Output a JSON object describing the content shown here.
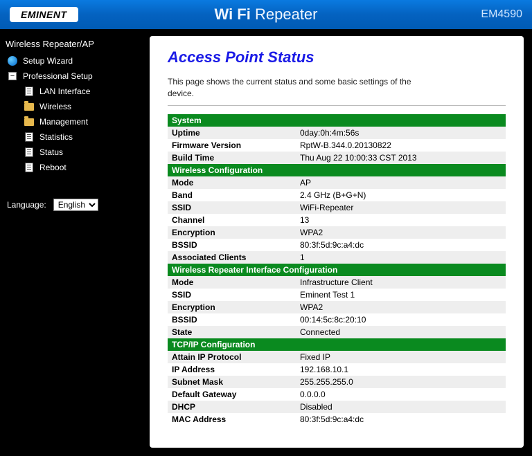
{
  "header": {
    "logo_text": "EMINENT",
    "title_strong": "Wi Fi",
    "title_light": "Repeater",
    "model": "EM4590"
  },
  "sidebar": {
    "heading": "Wireless Repeater/AP",
    "setup_wizard": "Setup Wizard",
    "pro_setup": "Professional Setup",
    "items": [
      {
        "label": "LAN Interface",
        "icon": "doc"
      },
      {
        "label": "Wireless",
        "icon": "folder"
      },
      {
        "label": "Management",
        "icon": "folder"
      },
      {
        "label": "Statistics",
        "icon": "doc"
      },
      {
        "label": "Status",
        "icon": "doc"
      },
      {
        "label": "Reboot",
        "icon": "doc"
      }
    ],
    "language_label": "Language:",
    "language_value": "English"
  },
  "page": {
    "title": "Access Point Status",
    "description": "This page shows the current status and some basic settings of the device."
  },
  "colors": {
    "section_header_bg": "#0a8a1f",
    "alt_row_bg": "#eeeeee",
    "title_color": "#1a1ae6"
  },
  "sections": [
    {
      "title": "System",
      "rows": [
        {
          "k": "Uptime",
          "v": "0day:0h:4m:56s"
        },
        {
          "k": "Firmware Version",
          "v": "RptW-B.344.0.20130822"
        },
        {
          "k": "Build Time",
          "v": "Thu Aug 22 10:00:33 CST 2013"
        }
      ]
    },
    {
      "title": "Wireless Configuration",
      "rows": [
        {
          "k": "Mode",
          "v": "AP"
        },
        {
          "k": "Band",
          "v": "2.4 GHz (B+G+N)"
        },
        {
          "k": "SSID",
          "v": "WiFi-Repeater"
        },
        {
          "k": "Channel",
          "v": "13"
        },
        {
          "k": "Encryption",
          "v": "WPA2"
        },
        {
          "k": "BSSID",
          "v": "80:3f:5d:9c:a4:dc"
        },
        {
          "k": "Associated Clients",
          "v": "1"
        }
      ]
    },
    {
      "title": "Wireless Repeater Interface Configuration",
      "rows": [
        {
          "k": "Mode",
          "v": "Infrastructure Client"
        },
        {
          "k": "SSID",
          "v": "Eminent Test 1"
        },
        {
          "k": "Encryption",
          "v": "WPA2"
        },
        {
          "k": "BSSID",
          "v": "00:14:5c:8c:20:10"
        },
        {
          "k": "State",
          "v": "Connected"
        }
      ]
    },
    {
      "title": "TCP/IP Configuration",
      "rows": [
        {
          "k": "Attain IP Protocol",
          "v": "Fixed IP"
        },
        {
          "k": "IP Address",
          "v": "192.168.10.1"
        },
        {
          "k": "Subnet Mask",
          "v": "255.255.255.0"
        },
        {
          "k": "Default Gateway",
          "v": "0.0.0.0"
        },
        {
          "k": "DHCP",
          "v": "Disabled"
        },
        {
          "k": "MAC Address",
          "v": "80:3f:5d:9c:a4:dc"
        }
      ]
    }
  ]
}
